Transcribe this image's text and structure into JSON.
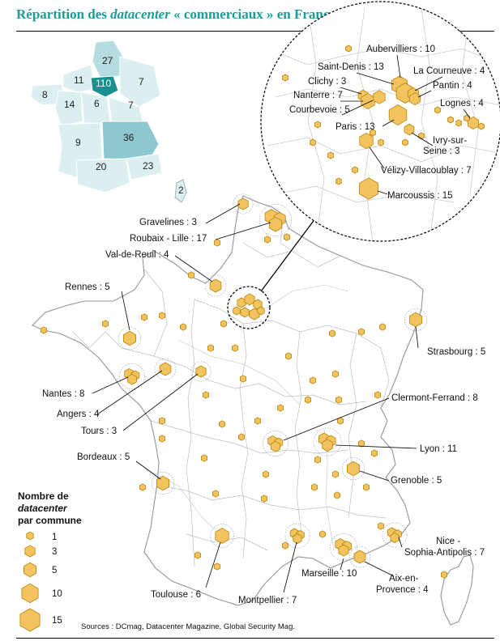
{
  "title": {
    "part1": "Répartition des ",
    "part2": "datacenter",
    "part3": " « commerciaux » en France métropolitaine"
  },
  "source": "Sources : DCmag, Datacenter Magazine, Global Security Mag.",
  "legend": {
    "title_line1": "Nombre de",
    "title_line2": "datacenter",
    "title_line3": "par commune",
    "items": [
      {
        "value": 1,
        "label": "1"
      },
      {
        "value": 3,
        "label": "3"
      },
      {
        "value": 5,
        "label": "5"
      },
      {
        "value": 10,
        "label": "10"
      },
      {
        "value": 15,
        "label": "15"
      }
    ]
  },
  "colors": {
    "marker_fill": "#f2c35e",
    "marker_stroke": "#b8860b",
    "land": "#ffffff",
    "border": "#9aa0a6",
    "title": "#1a9c9a",
    "mini_light": "#dceff0",
    "mini_mid": "#b5dde0",
    "mini_dark": "#8cc8cd",
    "mini_idf": "#1a8f8f"
  },
  "mini_map": {
    "regions": [
      {
        "label": "27",
        "shade": "mid"
      },
      {
        "label": "11",
        "shade": "light"
      },
      {
        "label": "110",
        "shade": "idf"
      },
      {
        "label": "7",
        "shade": "light"
      },
      {
        "label": "8",
        "shade": "light"
      },
      {
        "label": "14",
        "shade": "light"
      },
      {
        "label": "6",
        "shade": "light"
      },
      {
        "label": "7",
        "shade": "light"
      },
      {
        "label": "9",
        "shade": "light"
      },
      {
        "label": "36",
        "shade": "dark"
      },
      {
        "label": "20",
        "shade": "light"
      },
      {
        "label": "23",
        "shade": "light"
      },
      {
        "label": "2",
        "shade": "light"
      }
    ]
  },
  "cities": [
    {
      "label": "Gravelines : 3",
      "count": 3
    },
    {
      "label": "Roubaix - Lille : 17",
      "count": 17
    },
    {
      "label": "Val-de-Reuil : 4",
      "count": 4
    },
    {
      "label": "Rennes : 5",
      "count": 5
    },
    {
      "label": "Strasbourg : 5",
      "count": 5
    },
    {
      "label": "Nantes : 8",
      "count": 8
    },
    {
      "label": "Angers : 4",
      "count": 4
    },
    {
      "label": "Tours : 3",
      "count": 3
    },
    {
      "label": "Clermont-Ferrand : 8",
      "count": 8
    },
    {
      "label": "Lyon : 11",
      "count": 11
    },
    {
      "label": "Bordeaux : 5",
      "count": 5
    },
    {
      "label": "Grenoble : 5",
      "count": 5
    },
    {
      "label": "Nice - Sophia-Antipolis : 7",
      "count": 7
    },
    {
      "label": "Toulouse : 6",
      "count": 6
    },
    {
      "label": "Montpellier : 7",
      "count": 7
    },
    {
      "label": "Marseille : 10",
      "count": 10
    },
    {
      "label": "Aix-en-Provence : 4",
      "count": 4
    }
  ],
  "paris_zoom": [
    {
      "label": "Aubervilliers : 10",
      "count": 10
    },
    {
      "label": "Saint-Denis : 13",
      "count": 13
    },
    {
      "label": "La Courneuve : 4",
      "count": 4
    },
    {
      "label": "Clichy : 3",
      "count": 3
    },
    {
      "label": "Pantin : 4",
      "count": 4
    },
    {
      "label": "Nanterre : 7",
      "count": 7
    },
    {
      "label": "Lognes : 4",
      "count": 4
    },
    {
      "label": "Courbevoie : 5",
      "count": 5
    },
    {
      "label": "Paris : 13",
      "count": 13
    },
    {
      "label": "Ivry-sur-Seine : 3",
      "count": 3
    },
    {
      "label": "Vélizy-Villacoublay : 7",
      "count": 7
    },
    {
      "label": "Marcoussis : 15",
      "count": 15
    }
  ]
}
